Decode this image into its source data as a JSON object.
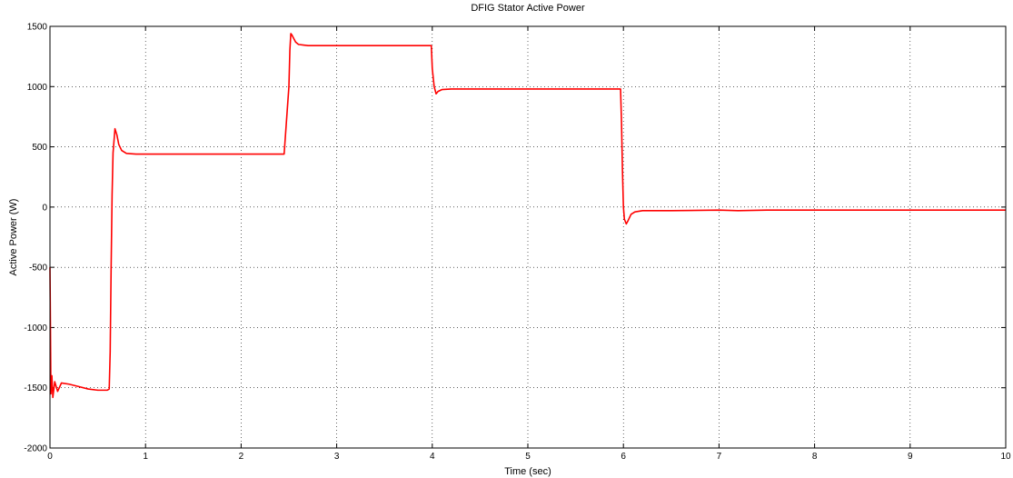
{
  "chart_data": {
    "type": "line",
    "title": "DFIG Stator Active Power",
    "xlabel": "Time (sec)",
    "ylabel": "Active Power (W)",
    "xlim": [
      0,
      10
    ],
    "ylim": [
      -2000,
      1500
    ],
    "grid": true,
    "xticks": [
      0,
      1,
      2,
      3,
      4,
      5,
      6,
      7,
      8,
      9,
      10
    ],
    "xtick_labels": [
      "0",
      "1",
      "2",
      "3",
      "4",
      "5",
      "6",
      "7",
      "8",
      "9",
      "10"
    ],
    "yticks": [
      -2000,
      -1500,
      -1000,
      -500,
      0,
      500,
      1000,
      1500
    ],
    "ytick_labels": [
      "-2000",
      "-1500",
      "-1000",
      "-500",
      "0",
      "500",
      "1000",
      "1500"
    ],
    "line_color": "#ff0000",
    "series": [
      {
        "x": [
          0,
          0.005,
          0.01,
          0.02,
          0.03,
          0.05,
          0.08,
          0.12,
          0.2,
          0.3,
          0.4,
          0.5,
          0.6,
          0.62,
          0.63,
          0.64,
          0.65,
          0.66,
          0.68,
          0.7,
          0.72,
          0.75,
          0.8,
          0.9,
          1.0,
          1.5,
          2.0,
          2.45,
          2.5,
          2.51,
          2.52,
          2.53,
          2.55,
          2.57,
          2.6,
          2.65,
          2.7,
          2.8,
          3.0,
          3.5,
          3.99,
          4.0,
          4.02,
          4.04,
          4.06,
          4.1,
          4.2,
          4.5,
          5.0,
          5.5,
          5.97,
          5.98,
          5.99,
          6.0,
          6.01,
          6.03,
          6.05,
          6.08,
          6.12,
          6.2,
          6.3,
          6.5,
          7.0,
          7.2,
          7.5,
          8,
          9,
          10
        ],
        "y": [
          -500,
          -1000,
          -1550,
          -1400,
          -1580,
          -1450,
          -1530,
          -1460,
          -1470,
          -1490,
          -1510,
          -1520,
          -1520,
          -1510,
          -1200,
          -500,
          100,
          450,
          650,
          600,
          520,
          470,
          445,
          440,
          440,
          440,
          440,
          440,
          1000,
          1300,
          1440,
          1430,
          1400,
          1370,
          1350,
          1345,
          1340,
          1340,
          1340,
          1340,
          1340,
          1150,
          1000,
          940,
          960,
          975,
          980,
          980,
          980,
          980,
          980,
          700,
          300,
          0,
          -100,
          -140,
          -110,
          -60,
          -40,
          -30,
          -30,
          -30,
          -25,
          -30,
          -25,
          -25,
          -25,
          -25
        ]
      }
    ]
  }
}
